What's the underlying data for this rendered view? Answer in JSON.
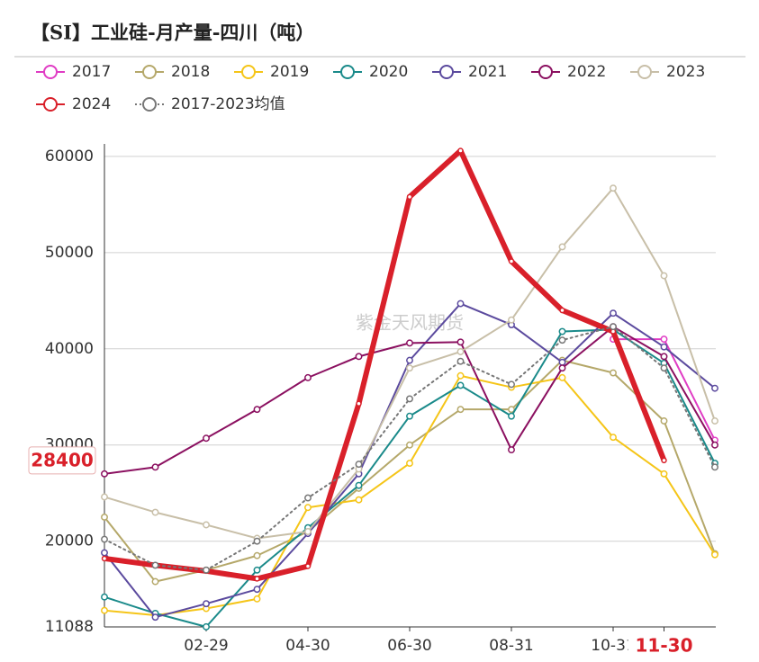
{
  "chart_data": {
    "type": "line",
    "title": "【SI】工业硅-月产量-四川（吨）",
    "watermark": "紫金天风期货",
    "categories": [
      null,
      null,
      "02-29",
      null,
      "04-30",
      null,
      "06-30",
      null,
      "08-31",
      null,
      "10-31",
      "11-30",
      null
    ],
    "highlight_category": 11,
    "ylim": [
      11088,
      61300
    ],
    "yticks": [
      11088,
      20000,
      30000,
      40000,
      50000,
      60000
    ],
    "y_marker": 28400,
    "grid": true,
    "series": [
      {
        "name": "2017",
        "color": "#e03cc4",
        "values": [
          null,
          null,
          null,
          null,
          null,
          null,
          null,
          null,
          null,
          null,
          41000,
          41000,
          30500
        ]
      },
      {
        "name": "2018",
        "color": "#b5a86a",
        "values": [
          22500,
          15800,
          17000,
          18500,
          21000,
          25500,
          30000,
          33700,
          33700,
          38800,
          37500,
          32500,
          18700
        ]
      },
      {
        "name": "2019",
        "color": "#f5c518",
        "values": [
          12800,
          12300,
          13000,
          14000,
          23500,
          24300,
          28100,
          37200,
          36000,
          37000,
          30800,
          27000,
          18600
        ]
      },
      {
        "name": "2020",
        "color": "#1a8a8a",
        "values": [
          14200,
          12500,
          11100,
          17000,
          21400,
          25800,
          33000,
          36200,
          33000,
          41800,
          42000,
          38500,
          28100
        ]
      },
      {
        "name": "2021",
        "color": "#5b4a9e",
        "values": [
          18800,
          12100,
          13500,
          15000,
          20800,
          27000,
          38800,
          44700,
          42500,
          38600,
          43700,
          40200,
          35900
        ]
      },
      {
        "name": "2022",
        "color": "#8b1060",
        "values": [
          27000,
          27700,
          30700,
          33700,
          37000,
          39200,
          40600,
          40700,
          29500,
          38000,
          42300,
          39200,
          30000
        ]
      },
      {
        "name": "2023",
        "color": "#c8bfa8",
        "values": [
          24600,
          23000,
          21700,
          20300,
          21000,
          27500,
          38000,
          39700,
          43000,
          50600,
          56700,
          47600,
          32500
        ]
      },
      {
        "name": "2024",
        "color": "#d9202a",
        "line_width": 6,
        "values": [
          18200,
          17500,
          16900,
          16100,
          17400,
          34300,
          55800,
          60600,
          49100,
          44000,
          41800,
          28400,
          null
        ]
      },
      {
        "name": "2017-2023均值",
        "color": "#777777",
        "line_style": "dotted",
        "values": [
          20200,
          17500,
          17000,
          20000,
          24500,
          28000,
          34800,
          38700,
          36300,
          40900,
          42300,
          38000,
          27700
        ]
      }
    ]
  }
}
